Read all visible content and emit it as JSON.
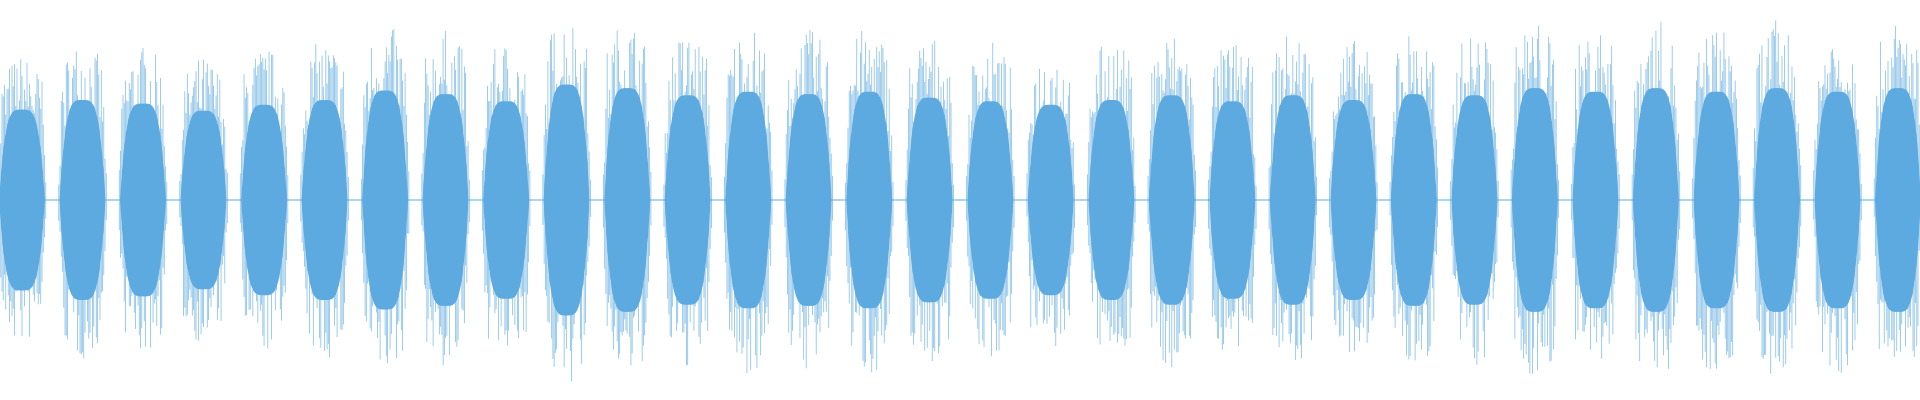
{
  "chart_data": {
    "type": "waveform",
    "color": "#5DAAE0",
    "ylim": [
      -1,
      1
    ],
    "values": [
      0.76,
      0.84,
      0.81,
      0.75,
      0.8,
      0.84,
      0.92,
      0.89,
      0.83,
      0.97,
      0.94,
      0.88,
      0.91,
      0.89,
      0.91,
      0.86,
      0.83,
      0.8,
      0.84,
      0.88,
      0.83,
      0.88,
      0.84,
      0.89,
      0.88,
      0.94,
      0.91,
      0.94,
      0.91,
      0.94,
      0.91,
      0.94
    ]
  }
}
